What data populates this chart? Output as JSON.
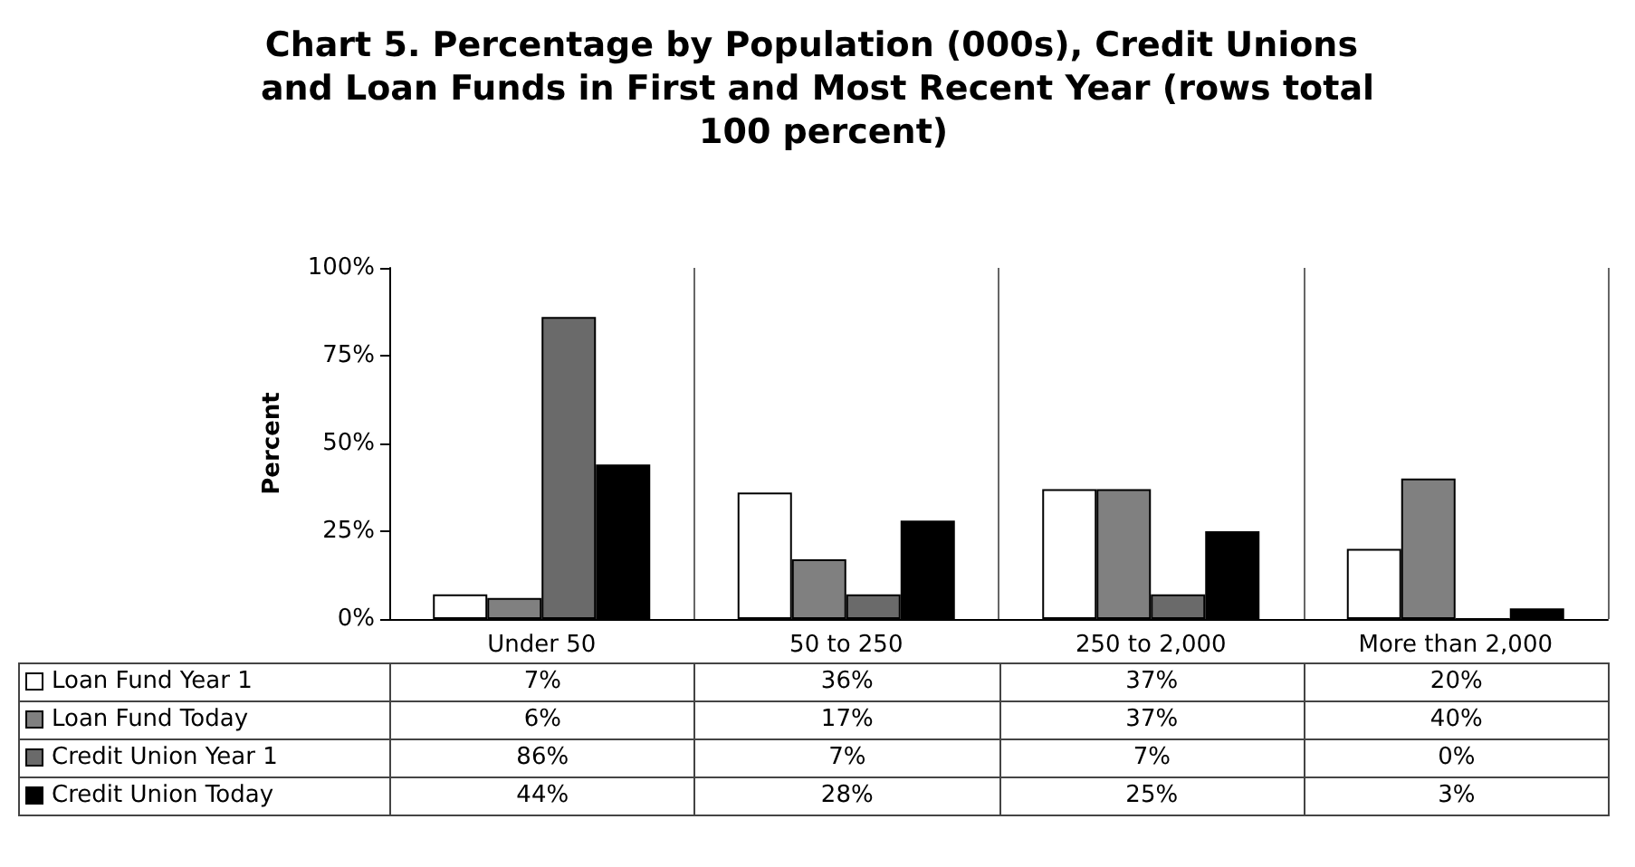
{
  "chart_data": {
    "type": "bar",
    "title": "Chart 5. Percentage by Population (000s), Credit Unions and Loan Funds in First and Most Recent Year (rows total 100 percent)",
    "ylabel": "Percent",
    "categories": [
      "Under 50",
      "50 to 250",
      "250 to 2,000",
      "More than 2,000"
    ],
    "series": [
      {
        "name": "Loan Fund Year 1",
        "color": "#ffffff",
        "values": [
          7,
          36,
          37,
          20
        ],
        "value_labels": [
          "7%",
          "36%",
          "37%",
          "20%"
        ]
      },
      {
        "name": "Loan Fund Today",
        "color": "#808080",
        "values": [
          6,
          17,
          37,
          40
        ],
        "value_labels": [
          "6%",
          "17%",
          "37%",
          "40%"
        ]
      },
      {
        "name": "Credit Union Year 1",
        "color": "#6a6a6a",
        "values": [
          86,
          7,
          7,
          0
        ],
        "value_labels": [
          "86%",
          "7%",
          "7%",
          "0%"
        ]
      },
      {
        "name": "Credit Union Today",
        "color": "#000000",
        "values": [
          44,
          28,
          25,
          3
        ],
        "value_labels": [
          "44%",
          "28%",
          "25%",
          "3%"
        ]
      }
    ],
    "ylim": [
      0,
      100
    ],
    "yticks": [
      {
        "value": 0,
        "label": "0%"
      },
      {
        "value": 25,
        "label": "25%"
      },
      {
        "value": 50,
        "label": "50%"
      },
      {
        "value": 75,
        "label": "75%"
      },
      {
        "value": 100,
        "label": "100%"
      }
    ],
    "grid": "x",
    "legend": "bottom"
  }
}
